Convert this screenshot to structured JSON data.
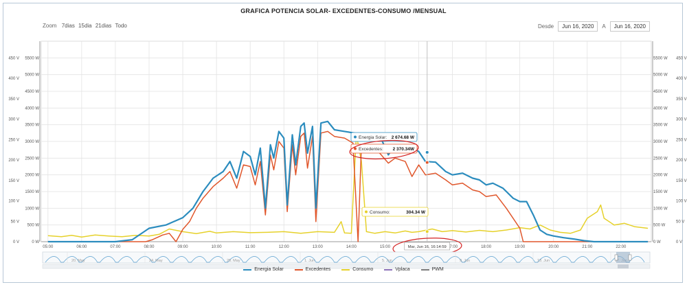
{
  "title": "GRAFICA POTENCIA SOLAR- EXCEDENTES-CONSUMO /MENSUAL",
  "zoom": {
    "label": "Zoom",
    "options": [
      "7dias",
      "15dia",
      "21dias",
      "Todo"
    ]
  },
  "range": {
    "from_label": "Desde",
    "from_value": "Jun 16, 2020",
    "to_label": "A",
    "to_value": "Jun 16, 2020"
  },
  "colors": {
    "solar": "#2b8cbe",
    "excedentes": "#e0562b",
    "consumo": "#e6d12a",
    "vplaca": "#8c72b8",
    "pwm": "#7b7b7b",
    "annotation": "#d42020",
    "grid": "#e3e3e3"
  },
  "chart_data": {
    "type": "line",
    "x_unit": "hour",
    "xlim": [
      4.8,
      22.9
    ],
    "ylim": [
      0,
      6000
    ],
    "y_power_ticks": [
      "0 W",
      "500 W",
      "1000 W",
      "1500 W",
      "2000 W",
      "2500 W",
      "3000 W",
      "3500 W",
      "4000 W",
      "4500 W",
      "5000 W",
      "5500 W"
    ],
    "y_volt_ticks": [
      "0 V",
      "50 V",
      "100 V",
      "150 V",
      "200 V",
      "250 V",
      "300 V",
      "350 V",
      "400 V",
      "450 V"
    ],
    "x_ticks": [
      "05:00",
      "06:00",
      "07:00",
      "08:00",
      "09:00",
      "10:00",
      "11:00",
      "12:00",
      "13:00",
      "14:00",
      "15:00",
      "16:00",
      "17:00",
      "18:00",
      "19:00",
      "20:00",
      "21:00",
      "22:00"
    ],
    "series": [
      {
        "name": "Energia Solar",
        "color_key": "solar",
        "points": [
          [
            5,
            0
          ],
          [
            6,
            0
          ],
          [
            7,
            0
          ],
          [
            7.5,
            60
          ],
          [
            8,
            400
          ],
          [
            8.5,
            500
          ],
          [
            9,
            720
          ],
          [
            9.3,
            1000
          ],
          [
            9.6,
            1500
          ],
          [
            9.9,
            1900
          ],
          [
            10.2,
            2100
          ],
          [
            10.4,
            2400
          ],
          [
            10.6,
            1900
          ],
          [
            10.8,
            2700
          ],
          [
            11,
            2550
          ],
          [
            11.15,
            2000
          ],
          [
            11.3,
            2800
          ],
          [
            11.45,
            1000
          ],
          [
            11.6,
            2900
          ],
          [
            11.7,
            2500
          ],
          [
            11.85,
            3300
          ],
          [
            12,
            3100
          ],
          [
            12.1,
            1100
          ],
          [
            12.25,
            3200
          ],
          [
            12.35,
            2300
          ],
          [
            12.5,
            3450
          ],
          [
            12.6,
            3550
          ],
          [
            12.7,
            2650
          ],
          [
            12.85,
            3450
          ],
          [
            12.95,
            1000
          ],
          [
            13.1,
            3550
          ],
          [
            13.3,
            3600
          ],
          [
            13.5,
            3350
          ],
          [
            13.8,
            3300
          ],
          [
            14.1,
            3250
          ],
          [
            14.3,
            3150
          ],
          [
            14.6,
            3050
          ],
          [
            14.9,
            3050
          ],
          [
            15.1,
            2600
          ],
          [
            15.3,
            2900
          ],
          [
            15.5,
            2850
          ],
          [
            15.8,
            2800
          ],
          [
            16,
            2700
          ],
          [
            16.2,
            2400
          ],
          [
            16.5,
            2380
          ],
          [
            16.8,
            2100
          ],
          [
            17,
            2000
          ],
          [
            17.3,
            2050
          ],
          [
            17.6,
            1900
          ],
          [
            17.8,
            1850
          ],
          [
            18,
            1700
          ],
          [
            18.2,
            1750
          ],
          [
            18.5,
            1600
          ],
          [
            18.8,
            1300
          ],
          [
            19,
            1200
          ],
          [
            19.2,
            1200
          ],
          [
            19.4,
            800
          ],
          [
            19.6,
            350
          ],
          [
            19.8,
            220
          ],
          [
            20,
            170
          ],
          [
            20.3,
            120
          ],
          [
            20.6,
            80
          ],
          [
            20.9,
            30
          ],
          [
            21.2,
            0
          ],
          [
            22.8,
            0
          ]
        ]
      },
      {
        "name": "Excedentes",
        "color_key": "excedentes",
        "points": [
          [
            5,
            0
          ],
          [
            7.9,
            0
          ],
          [
            8.1,
            60
          ],
          [
            8.4,
            200
          ],
          [
            8.6,
            250
          ],
          [
            8.8,
            0
          ],
          [
            9,
            370
          ],
          [
            9.2,
            600
          ],
          [
            9.4,
            1000
          ],
          [
            9.6,
            1300
          ],
          [
            9.9,
            1650
          ],
          [
            10.2,
            1900
          ],
          [
            10.4,
            2100
          ],
          [
            10.6,
            1600
          ],
          [
            10.8,
            2300
          ],
          [
            11,
            2250
          ],
          [
            11.15,
            1700
          ],
          [
            11.3,
            2400
          ],
          [
            11.45,
            800
          ],
          [
            11.6,
            2600
          ],
          [
            11.7,
            2150
          ],
          [
            11.85,
            3000
          ],
          [
            12,
            2800
          ],
          [
            12.1,
            900
          ],
          [
            12.25,
            2900
          ],
          [
            12.35,
            2000
          ],
          [
            12.5,
            3150
          ],
          [
            12.6,
            3250
          ],
          [
            12.7,
            2200
          ],
          [
            12.85,
            3150
          ],
          [
            12.95,
            600
          ],
          [
            13.1,
            3250
          ],
          [
            13.3,
            3300
          ],
          [
            13.5,
            3150
          ],
          [
            13.8,
            3100
          ],
          [
            14.05,
            2950
          ],
          [
            14.2,
            0
          ],
          [
            14.3,
            2900
          ],
          [
            14.5,
            2850
          ],
          [
            14.8,
            2700
          ],
          [
            15.1,
            2350
          ],
          [
            15.3,
            2500
          ],
          [
            15.6,
            2400
          ],
          [
            15.8,
            1950
          ],
          [
            16,
            2300
          ],
          [
            16.2,
            2000
          ],
          [
            16.5,
            2050
          ],
          [
            16.8,
            1850
          ],
          [
            17,
            1700
          ],
          [
            17.3,
            1750
          ],
          [
            17.6,
            1550
          ],
          [
            17.8,
            1500
          ],
          [
            18,
            1350
          ],
          [
            18.3,
            1400
          ],
          [
            18.6,
            1000
          ],
          [
            18.8,
            700
          ],
          [
            19,
            400
          ],
          [
            19.1,
            0
          ],
          [
            22.8,
            0
          ]
        ]
      },
      {
        "name": "Consumo",
        "color_key": "consumo",
        "points": [
          [
            5,
            180
          ],
          [
            5.4,
            150
          ],
          [
            5.7,
            190
          ],
          [
            6,
            140
          ],
          [
            6.4,
            200
          ],
          [
            6.8,
            170
          ],
          [
            7.2,
            150
          ],
          [
            7.6,
            190
          ],
          [
            8,
            170
          ],
          [
            8.3,
            220
          ],
          [
            8.6,
            380
          ],
          [
            9,
            300
          ],
          [
            9.4,
            240
          ],
          [
            9.8,
            310
          ],
          [
            10,
            260
          ],
          [
            10.5,
            300
          ],
          [
            11,
            270
          ],
          [
            11.5,
            280
          ],
          [
            12,
            300
          ],
          [
            12.5,
            250
          ],
          [
            13,
            300
          ],
          [
            13.5,
            280
          ],
          [
            13.7,
            600
          ],
          [
            13.8,
            260
          ],
          [
            14,
            250
          ],
          [
            14.15,
            3200
          ],
          [
            14.3,
            2400
          ],
          [
            14.45,
            300
          ],
          [
            14.7,
            250
          ],
          [
            15,
            300
          ],
          [
            15.3,
            260
          ],
          [
            15.6,
            320
          ],
          [
            15.8,
            280
          ],
          [
            16,
            300
          ],
          [
            16.4,
            380
          ],
          [
            16.7,
            300
          ],
          [
            17,
            330
          ],
          [
            17.4,
            290
          ],
          [
            17.8,
            340
          ],
          [
            18.2,
            300
          ],
          [
            18.6,
            350
          ],
          [
            19,
            420
          ],
          [
            19.3,
            380
          ],
          [
            19.6,
            500
          ],
          [
            19.9,
            350
          ],
          [
            20.2,
            280
          ],
          [
            20.5,
            250
          ],
          [
            20.8,
            350
          ],
          [
            21,
            700
          ],
          [
            21.3,
            900
          ],
          [
            21.4,
            1100
          ],
          [
            21.5,
            700
          ],
          [
            21.8,
            500
          ],
          [
            22.1,
            550
          ],
          [
            22.4,
            450
          ],
          [
            22.8,
            400
          ]
        ]
      }
    ],
    "tooltips": [
      {
        "series": "Energia Solar",
        "label": "Energia Solar:",
        "value": "2 674.68 W",
        "color_key": "solar"
      },
      {
        "series": "Excedentes",
        "label": "Excedentes:",
        "value": "2 370.34W",
        "color_key": "excedentes"
      },
      {
        "series": "Consumo",
        "label": "Consumo:",
        "value": "304.34 W",
        "color_key": "consumo"
      }
    ],
    "crosshair_x": 16.25,
    "crosshair_label": "Mar, Jun 16, 16:14:59",
    "navigator_labels": [
      "20. May",
      "24. May",
      "28. May",
      "1. Jun",
      "5. Jun",
      "9. Jun",
      "13. Jun",
      "17. Jun"
    ],
    "legend": [
      "Energia Solar",
      "Excedentes",
      "Consumo",
      "Vplaca",
      "PWM"
    ]
  }
}
